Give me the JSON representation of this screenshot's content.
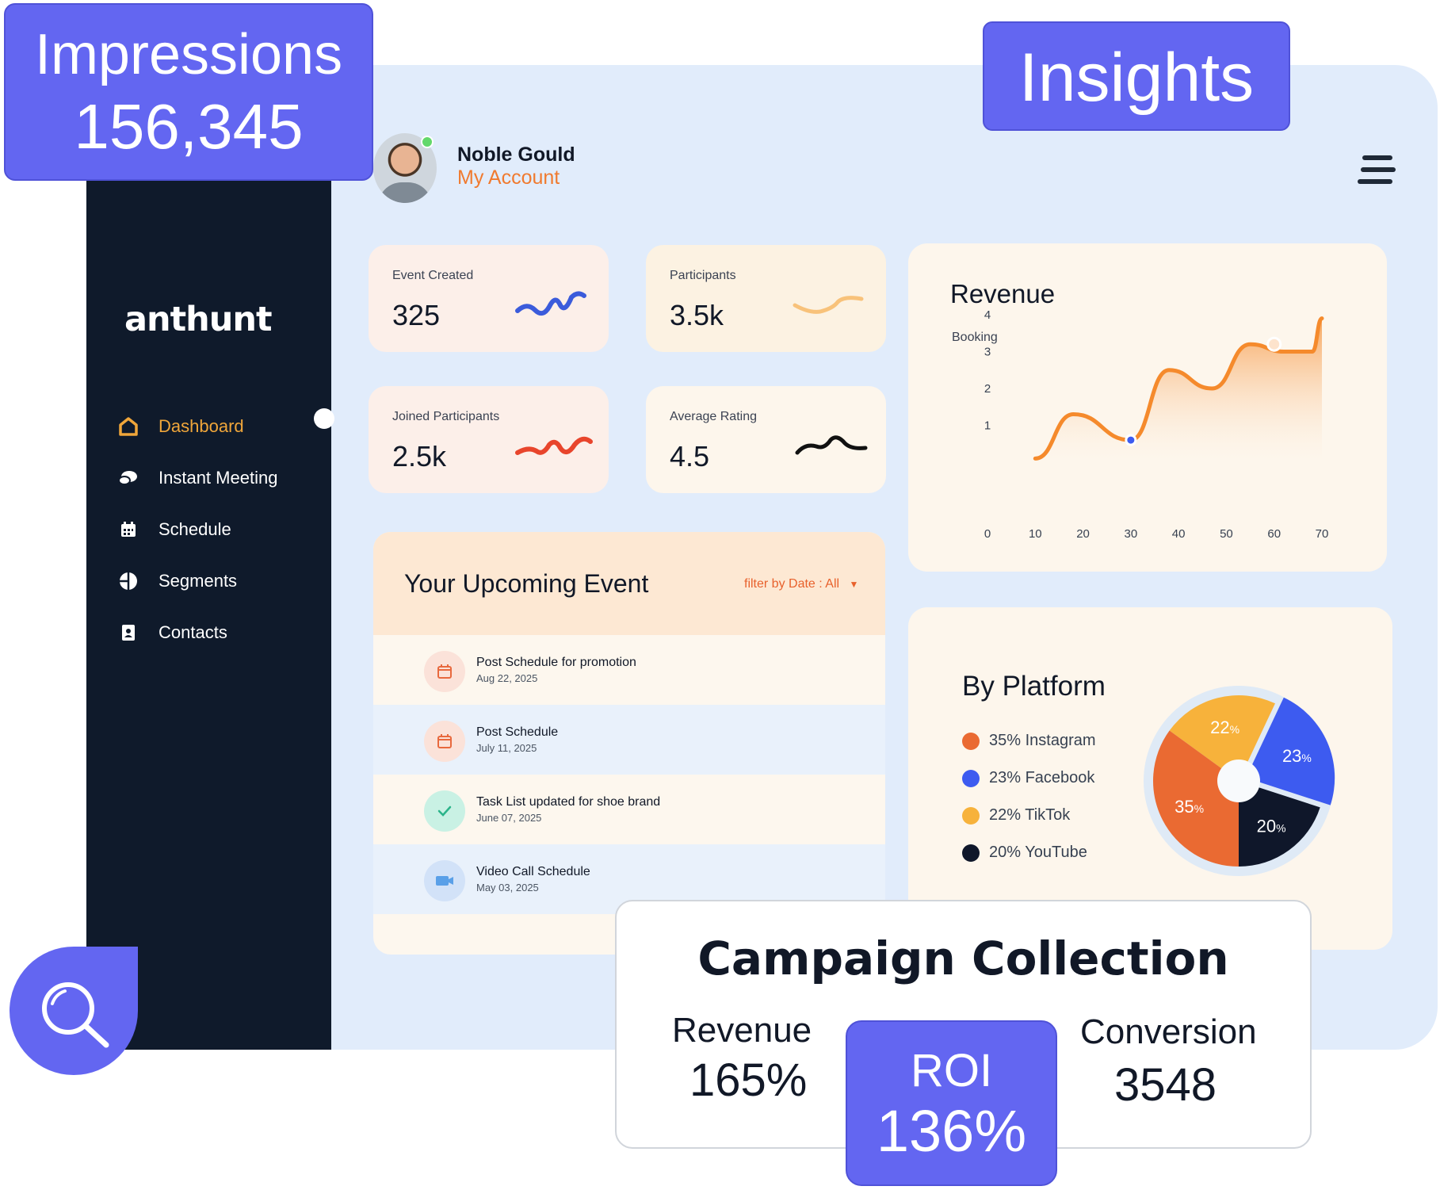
{
  "badges": {
    "impressions_label": "Impressions",
    "impressions_value": "156,345",
    "insights": "Insights"
  },
  "brand": {
    "logo": "anthunt"
  },
  "user": {
    "name": "Noble Gould",
    "account_link": "My Account"
  },
  "nav": {
    "items": [
      {
        "label": "Dashboard",
        "icon": "home-icon",
        "active": true
      },
      {
        "label": "Instant Meeting",
        "icon": "chat-icon",
        "active": false
      },
      {
        "label": "Schedule",
        "icon": "calendar-icon",
        "active": false
      },
      {
        "label": "Segments",
        "icon": "pie-icon",
        "active": false
      },
      {
        "label": "Contacts",
        "icon": "contact-book-icon",
        "active": false
      }
    ]
  },
  "stats": [
    {
      "label": "Event Created",
      "value": "325",
      "color": "#3b5bdb",
      "bg": "#fcefe9"
    },
    {
      "label": "Participants",
      "value": "3.5k",
      "color": "#f8c27a",
      "bg": "#fcf2e2"
    },
    {
      "label": "Joined Participants",
      "value": "2.5k",
      "color": "#e8452c",
      "bg": "#fcefe9"
    },
    {
      "label": "Average Rating",
      "value": "4.5",
      "color": "#111111",
      "bg": "#fdf6ec"
    }
  ],
  "revenue": {
    "title": "Revenue",
    "ylabel": "Booking"
  },
  "chart_data": {
    "type": "area",
    "title": "Revenue",
    "ylabel": "Booking",
    "x_ticks": [
      0,
      10,
      20,
      30,
      40,
      50,
      60,
      70
    ],
    "y_ticks": [
      1,
      2,
      3,
      4
    ],
    "xlim": [
      0,
      70
    ],
    "ylim": [
      0,
      4.5
    ],
    "x": [
      10,
      18,
      30,
      38,
      47,
      55,
      62,
      68,
      70
    ],
    "y": [
      0.1,
      1.3,
      0.6,
      2.5,
      2.0,
      3.2,
      3.0,
      3.0,
      3.9
    ],
    "highlight_points": [
      {
        "x": 30,
        "y": 0.6
      },
      {
        "x": 60,
        "y": 3.2
      }
    ],
    "color": "#f58a2c",
    "grid": false
  },
  "events": {
    "title": "Your Upcoming Event",
    "filter": "filter by Date : All",
    "items": [
      {
        "title": "Post Schedule for promotion",
        "date": "Aug 22, 2025",
        "icon": "calendar-icon"
      },
      {
        "title": "Post Schedule",
        "date": "July 11, 2025",
        "icon": "calendar-icon"
      },
      {
        "title": "Task List updated for shoe brand",
        "date": "June 07, 2025",
        "icon": "check-icon"
      },
      {
        "title": "Video Call Schedule",
        "date": "May 03, 2025",
        "icon": "video-icon"
      }
    ]
  },
  "platform": {
    "title": "By Platform",
    "legend": [
      {
        "label": "35% Instagram",
        "color": "#ea6a32"
      },
      {
        "label": "23% Facebook",
        "color": "#3d5bf0"
      },
      {
        "label": "22% TikTok",
        "color": "#f7b23b"
      },
      {
        "label": "20% YouTube",
        "color": "#0f172a"
      }
    ],
    "slices": [
      {
        "name": "Instagram",
        "value": 35,
        "label": "35",
        "color": "#ea6a32"
      },
      {
        "name": "Facebook",
        "value": 23,
        "label": "23",
        "color": "#3d5bf0"
      },
      {
        "name": "TikTok",
        "value": 22,
        "label": "22",
        "color": "#f7b23b"
      },
      {
        "name": "YouTube",
        "value": 20,
        "label": "20",
        "color": "#0f172a"
      }
    ],
    "pct": "%"
  },
  "campaign": {
    "title": "Campaign Collection",
    "revenue_label": "Revenue",
    "revenue_value": "165%",
    "roi_label": "ROI",
    "roi_value": "136%",
    "conversion_label": "Conversion",
    "conversion_value": "3548"
  },
  "icons": {
    "search": "search-icon",
    "menu": "hamburger-icon"
  }
}
